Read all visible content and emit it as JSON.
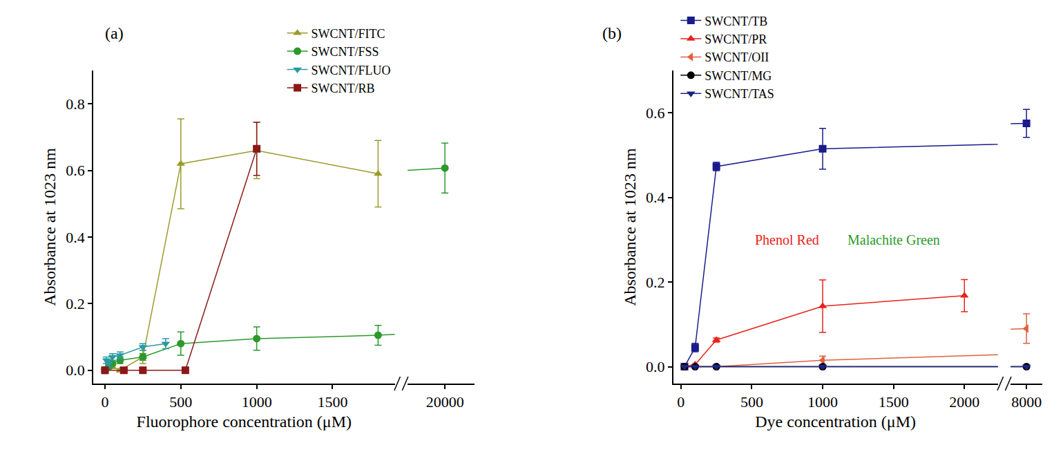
{
  "chart_data": [
    {
      "type": "line",
      "title": "(a)",
      "x_label": "Fluorophore concentration (μM)",
      "y_label": "Absorbance at 1023 nm",
      "xlim": [
        [
          -77,
          1910
        ],
        [
          19750,
          20200
        ]
      ],
      "xticks": [
        [
          0,
          500,
          1000,
          1500
        ],
        [
          20000
        ]
      ],
      "ylim": [
        -0.04,
        0.9
      ],
      "yticks": [
        {
          "value": 0,
          "label": "0.0"
        },
        {
          "value": 0.2,
          "label": "0.2"
        },
        {
          "value": 0.4,
          "label": "0.4"
        },
        {
          "value": 0.6,
          "label": "0.6"
        },
        {
          "value": 0.8,
          "label": "0.8"
        }
      ],
      "grid": false,
      "legend": "top right",
      "series": [
        {
          "name": "SWCNT/FITC",
          "color": "#9b9b2b",
          "marker": "triangle-up",
          "x": [
            0,
            50,
            100,
            250,
            500,
            1000,
            1800
          ],
          "values": [
            0,
            0.01,
            0.0,
            0.04,
            0.62,
            0.66,
            0.59
          ],
          "errors": [
            0.005,
            0.005,
            0.005,
            0.02,
            0.135,
            0.085,
            0.1
          ]
        },
        {
          "name": "SWCNT/FSS",
          "color": "#2a9a2a",
          "marker": "circle",
          "x": [
            0,
            25,
            50,
            100,
            250,
            500,
            1000,
            1800,
            20000
          ],
          "values": [
            0,
            0.01,
            0.02,
            0.03,
            0.04,
            0.08,
            0.095,
            0.105,
            0.607
          ],
          "errors": [
            0.005,
            0.005,
            0.005,
            0.01,
            0.01,
            0.035,
            0.035,
            0.03,
            0.075
          ]
        },
        {
          "name": "SWCNT/FLUO",
          "color": "#2a9aa0",
          "marker": "triangle-down",
          "x": [
            0,
            10,
            25,
            50,
            100,
            250,
            400
          ],
          "values": [
            0.0,
            0.03,
            0.02,
            0.04,
            0.045,
            0.07,
            0.08
          ],
          "errors": [
            0.01,
            0.01,
            0.01,
            0.01,
            0.01,
            0.01,
            0.015
          ]
        },
        {
          "name": "SWCNT/RB",
          "color": "#8b1818",
          "marker": "square",
          "x": [
            0,
            125,
            250,
            530,
            1000
          ],
          "values": [
            0,
            0,
            0,
            0,
            0.665
          ],
          "errors": [
            0,
            0,
            0,
            0,
            0.08
          ]
        }
      ]
    },
    {
      "type": "line",
      "title": "(b)",
      "x_label": "Dye concentration (μM)",
      "y_label": "Absorbance at 1023 nm",
      "xlim": [
        [
          -55,
          2236
        ],
        [
          7890,
          8110
        ]
      ],
      "xticks": [
        [
          0,
          500,
          1000,
          1500,
          2000
        ],
        [
          8000
        ]
      ],
      "ylim": [
        -0.04,
        0.7
      ],
      "yticks": [
        {
          "value": 0,
          "label": "0.0"
        },
        {
          "value": 0.2,
          "label": "0.2"
        },
        {
          "value": 0.4,
          "label": "0.4"
        },
        {
          "value": 0.6,
          "label": "0.6"
        }
      ],
      "grid": false,
      "legend": "top left",
      "annotations": [
        {
          "text": "Phenol Red",
          "color": "#e8221a"
        },
        {
          "text": "Malachite Green",
          "color": "#2a9a2a"
        }
      ],
      "series": [
        {
          "name": "SWCNT/TB",
          "color": "#1a1a8c",
          "marker": "square",
          "x": [
            25,
            100,
            250,
            1000,
            8000
          ],
          "values": [
            0,
            0.045,
            0.473,
            0.515,
            0.575
          ],
          "errors": [
            0,
            0.01,
            0.01,
            0.048,
            0.033
          ]
        },
        {
          "name": "SWCNT/PR",
          "color": "#e8221a",
          "marker": "triangle-up",
          "x": [
            25,
            100,
            250,
            1000,
            2000
          ],
          "values": [
            0,
            0.005,
            0.063,
            0.143,
            0.168
          ],
          "errors": [
            0,
            0,
            0.005,
            0.062,
            0.038
          ]
        },
        {
          "name": "SWCNT/OII",
          "color": "#e0603e",
          "marker": "triangle-left",
          "x": [
            25,
            100,
            250,
            1000,
            8000
          ],
          "values": [
            0,
            0,
            0,
            0.015,
            0.09
          ],
          "errors": [
            0,
            0,
            0,
            0.01,
            0.035
          ]
        },
        {
          "name": "SWCNT/MG",
          "color": "#000000",
          "marker": "circle",
          "x": [
            25,
            100,
            250,
            1000,
            8000
          ],
          "values": [
            0,
            0,
            0,
            0,
            0
          ],
          "errors": [
            0,
            0,
            0,
            0,
            0
          ]
        },
        {
          "name": "SWCNT/TAS",
          "color": "#1a2580",
          "marker": "triangle-down",
          "x": [
            25,
            100,
            250,
            1000,
            8000
          ],
          "values": [
            0,
            0,
            0,
            0,
            0
          ],
          "errors": [
            0,
            0,
            0,
            0,
            0
          ]
        }
      ]
    }
  ]
}
